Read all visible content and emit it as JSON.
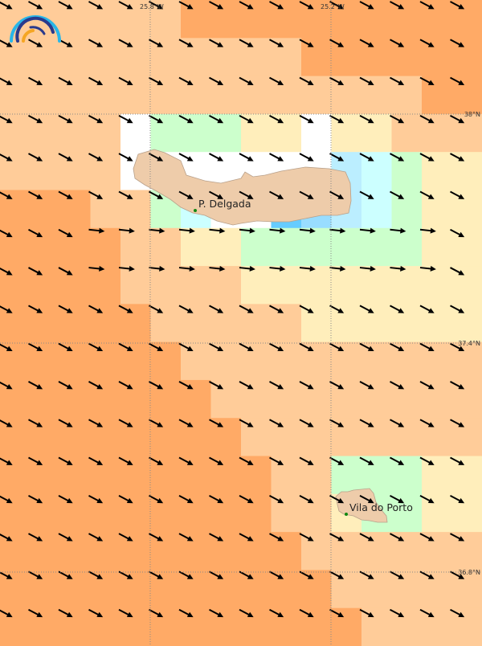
{
  "palette": {
    "O": "#FFCC99",
    "D": "#FFAA66",
    "Y": "#FFEEBB",
    "G": "#CCFFCC",
    "W": "#FFFFFF",
    "C": "#CCFFFF",
    "B": "#BBEEFF",
    "M": "#99DDFF",
    "N": "#66CCFF"
  },
  "land_color": "#EECCAA",
  "grid_cells": [
    "OOOOOODDDDDDDDDD",
    "OOOOOOOOOODDDDDD",
    "OOOOOOOOOOOOOODD",
    "OOOOWGGGYYWYYOOO",
    "OOOOWWWWWWWBCGYY",
    "DDDOOGCWWNMBCGYY",
    "DDDDOOYYGGGGGGYY",
    "DDDDOOOOYYYYYYYY",
    "DDDDDOOOOOYYYYYY",
    "DDDDDDOOOOOOOOOO",
    "DDDDDDDOOOOOOOOO",
    "DDDDDDDDOOOOOOOO",
    "DDDDDDDDDOOGGGYY",
    "DDDDDDDDDOOYGGYY",
    "DDDDDDDDDDOOOOOO",
    "DDDDDDDDDDDOOOOO",
    "DDDDDDDDDDDDOOOO"
  ],
  "wind": {
    "default_direction_deg": 28,
    "horizontal_rows": [
      6,
      7
    ],
    "horizontal_direction_deg": 6
  },
  "graticule": {
    "longitudes": [
      "25.8°W",
      "25.2°W"
    ],
    "latitudes": [
      "38°N",
      "37.4°N",
      "36.8°N"
    ]
  },
  "places": [
    {
      "name": "P. Delgada"
    },
    {
      "name": "Vila do Porto"
    }
  ],
  "logo": {
    "colors": [
      "#29B6E8",
      "#2A3A8C",
      "#F5A623"
    ]
  }
}
